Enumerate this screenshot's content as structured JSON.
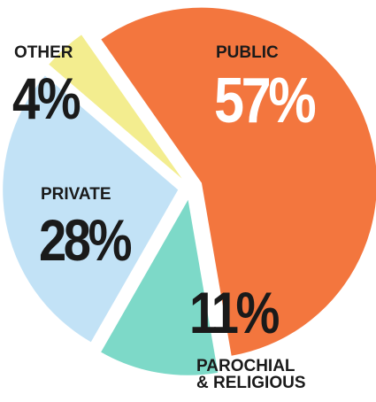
{
  "chart_data": {
    "type": "pie",
    "categories": [
      "PUBLIC",
      "PAROCHIAL & RELIGIOUS",
      "PRIVATE",
      "OTHER"
    ],
    "values": [
      57,
      11,
      28,
      4
    ],
    "value_labels": [
      "57%",
      "11%",
      "28%",
      "4%"
    ],
    "colors": [
      "#f26a2e",
      "#72d6c3",
      "#bddff5",
      "#f2ec86"
    ]
  }
}
